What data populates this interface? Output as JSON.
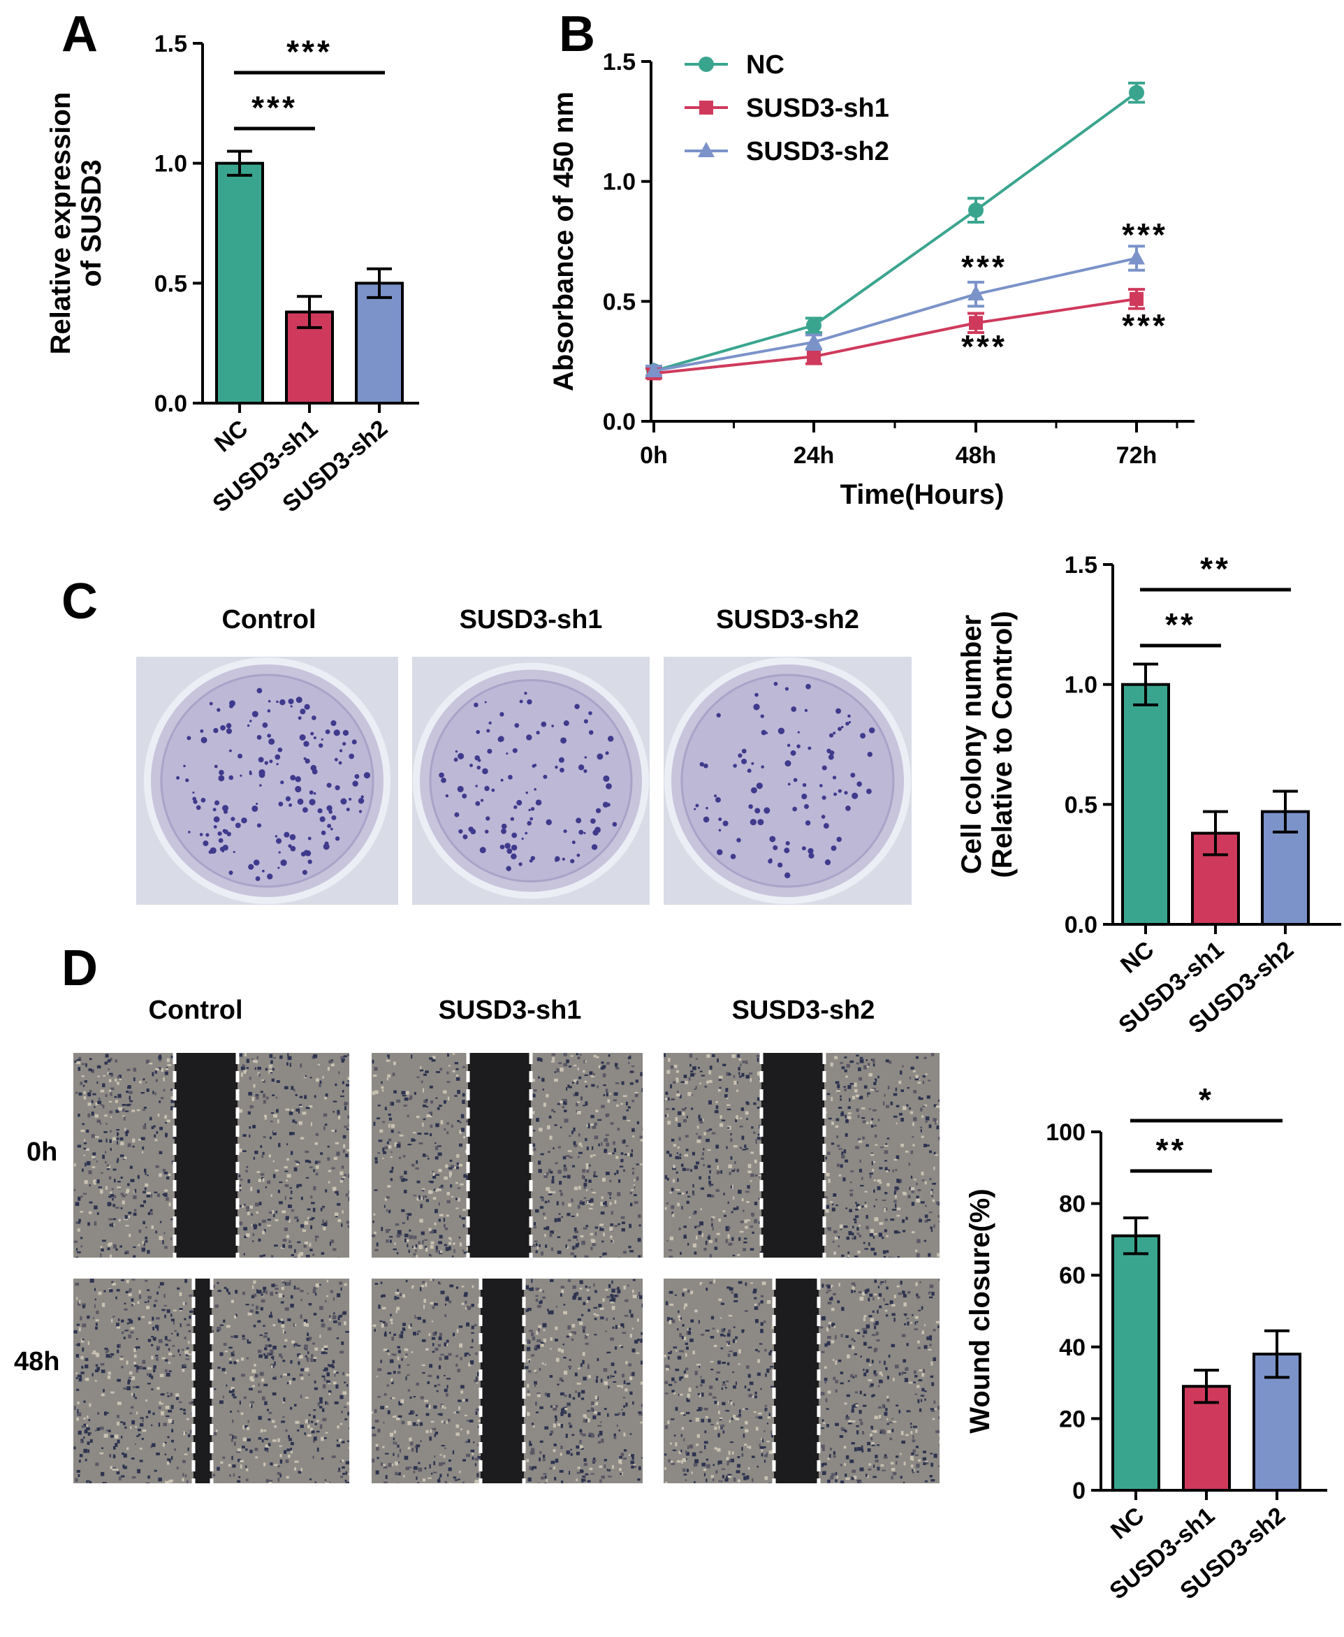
{
  "panels": {
    "A": "A",
    "B": "B",
    "C": "C",
    "D": "D"
  },
  "colors": {
    "nc": "#3aa58f",
    "sh1": "#cf3a5c",
    "sh2": "#7b93c9"
  },
  "panel_c": {
    "labels": [
      "Control",
      "SUSD3-sh1",
      "SUSD3-sh2"
    ]
  },
  "panel_d": {
    "labels": [
      "Control",
      "SUSD3-sh1",
      "SUSD3-sh2"
    ],
    "rows": [
      "0h",
      "48h"
    ]
  },
  "chart_data": [
    {
      "id": "A",
      "type": "bar",
      "categories": [
        "NC",
        "SUSD3-sh1",
        "SUSD3-sh2"
      ],
      "values": [
        1.0,
        0.38,
        0.5
      ],
      "errors": [
        0.05,
        0.065,
        0.06
      ],
      "ylabel": [
        "Relative expression",
        "of SUSD3"
      ],
      "ylim": [
        0,
        1.5
      ],
      "yticks": [
        "0.0",
        "0.5",
        "1.0",
        "1.5"
      ],
      "significance": [
        {
          "from": "NC",
          "to": "SUSD3-sh2",
          "label": "***"
        },
        {
          "from": "NC",
          "to": "SUSD3-sh1",
          "label": "***"
        }
      ]
    },
    {
      "id": "B",
      "type": "line",
      "x": [
        "0h",
        "24h",
        "48h",
        "72h"
      ],
      "xlabel": "Time(Hours)",
      "ylabel": "Absorbance of 450 nm",
      "ylim": [
        0,
        1.5
      ],
      "yticks": [
        "0.0",
        "0.5",
        "1.0",
        "1.5"
      ],
      "legend_position": "top-left",
      "series": [
        {
          "name": "NC",
          "marker": "circle",
          "values": [
            0.21,
            0.4,
            0.88,
            1.37
          ],
          "errors": [
            0.02,
            0.03,
            0.05,
            0.04
          ]
        },
        {
          "name": "SUSD3-sh1",
          "marker": "square",
          "values": [
            0.2,
            0.27,
            0.41,
            0.51
          ],
          "errors": [
            0.02,
            0.03,
            0.04,
            0.04
          ]
        },
        {
          "name": "SUSD3-sh2",
          "marker": "triangle",
          "values": [
            0.21,
            0.33,
            0.53,
            0.68
          ],
          "errors": [
            0.02,
            0.03,
            0.05,
            0.05
          ]
        }
      ],
      "annotations": [
        {
          "x": "48h",
          "label": "***",
          "position": "above"
        },
        {
          "x": "48h",
          "label": "***",
          "position": "below"
        },
        {
          "x": "72h",
          "label": "***",
          "position": "above"
        },
        {
          "x": "72h",
          "label": "***",
          "position": "below"
        }
      ]
    },
    {
      "id": "C",
      "type": "bar",
      "categories": [
        "NC",
        "SUSD3-sh1",
        "SUSD3-sh2"
      ],
      "values": [
        1.0,
        0.38,
        0.47
      ],
      "errors": [
        0.085,
        0.09,
        0.085
      ],
      "ylabel": [
        "Cell colony number",
        "(Relative to Control)"
      ],
      "ylim": [
        0,
        1.5
      ],
      "yticks": [
        "0.0",
        "0.5",
        "1.0",
        "1.5"
      ],
      "significance": [
        {
          "from": "NC",
          "to": "SUSD3-sh2",
          "label": "**"
        },
        {
          "from": "NC",
          "to": "SUSD3-sh1",
          "label": "**"
        }
      ]
    },
    {
      "id": "D",
      "type": "bar",
      "categories": [
        "NC",
        "SUSD3-sh1",
        "SUSD3-sh2"
      ],
      "values": [
        71,
        29,
        38
      ],
      "errors": [
        5,
        4.5,
        6.5
      ],
      "ylabel": [
        "Wound closure(%)"
      ],
      "ylim": [
        0,
        100
      ],
      "yticks": [
        "0",
        "20",
        "40",
        "60",
        "80",
        "100"
      ],
      "significance": [
        {
          "from": "NC",
          "to": "SUSD3-sh2",
          "label": "*"
        },
        {
          "from": "NC",
          "to": "SUSD3-sh1",
          "label": "**"
        }
      ]
    }
  ]
}
